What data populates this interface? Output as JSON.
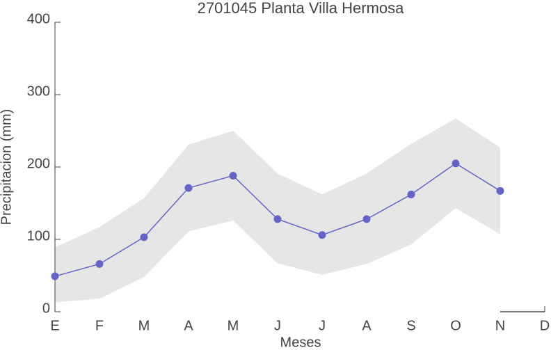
{
  "chart_data": {
    "type": "line",
    "title": "2701045 Planta Villa Hermosa",
    "x_label": "Meses",
    "y_label": "Precipitacion (mm)",
    "categories": [
      "E",
      "F",
      "M",
      "A",
      "M",
      "J",
      "J",
      "A",
      "S",
      "O",
      "N",
      "D"
    ],
    "series": [
      {
        "color": "#6464c8",
        "values": [
          49,
          66,
          103,
          171,
          188,
          128,
          106,
          128,
          162,
          205,
          167,
          null
        ]
      }
    ],
    "band": {
      "color": "#e6e6e6",
      "upper": [
        89,
        117,
        157,
        231,
        250,
        191,
        162,
        191,
        232,
        267,
        227,
        null
      ],
      "lower": [
        13,
        18,
        48,
        111,
        126,
        67,
        51,
        66,
        93,
        143,
        107,
        null
      ]
    },
    "ylim": [
      0,
      400
    ],
    "yticks": [
      0,
      100,
      200,
      300,
      400
    ]
  }
}
